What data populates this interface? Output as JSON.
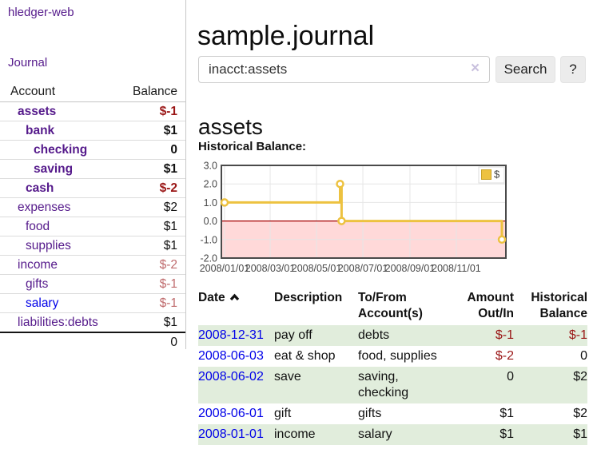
{
  "app": {
    "title": "hledger-web"
  },
  "colors": {
    "link_purple": "#551a8b",
    "link_blue": "#0000e8",
    "negative_red": "#9a1616",
    "negative_muted": "#bf6b6d",
    "row_shade_green": "#e1eddc",
    "button_gray": "#ececec"
  },
  "sidebar": {
    "nav_journal": "Journal",
    "accounts": {
      "col_account": "Account",
      "col_balance": "Balance",
      "rows": [
        {
          "name": "assets",
          "indent": 1,
          "bold": true,
          "link": "visited",
          "balance": "$-1",
          "balance_style": "negative"
        },
        {
          "name": "bank",
          "indent": 2,
          "bold": true,
          "link": "visited",
          "balance": "$1",
          "balance_style": "normal"
        },
        {
          "name": "checking",
          "indent": 3,
          "bold": true,
          "link": "visited",
          "balance": "0",
          "balance_style": "normal"
        },
        {
          "name": "saving",
          "indent": 3,
          "bold": true,
          "link": "visited",
          "balance": "$1",
          "balance_style": "normal"
        },
        {
          "name": "cash",
          "indent": 2,
          "bold": true,
          "link": "visited",
          "balance": "$-2",
          "balance_style": "negative"
        },
        {
          "name": "expenses",
          "indent": 1,
          "bold": false,
          "link": "visited",
          "balance": "$2",
          "balance_style": "normal"
        },
        {
          "name": "food",
          "indent": 2,
          "bold": false,
          "link": "visited",
          "balance": "$1",
          "balance_style": "normal"
        },
        {
          "name": "supplies",
          "indent": 2,
          "bold": false,
          "link": "visited",
          "balance": "$1",
          "balance_style": "normal"
        },
        {
          "name": "income",
          "indent": 1,
          "bold": false,
          "link": "visited",
          "balance": "$-2",
          "balance_style": "negative_muted"
        },
        {
          "name": "gifts",
          "indent": 2,
          "bold": false,
          "link": "visited",
          "balance": "$-1",
          "balance_style": "negative_muted"
        },
        {
          "name": "salary",
          "indent": 2,
          "bold": false,
          "link": "unvisited",
          "balance": "$-1",
          "balance_style": "negative_muted"
        },
        {
          "name": "liabilities:debts",
          "indent": 1,
          "bold": false,
          "link": "visited",
          "balance": "$1",
          "balance_style": "normal"
        }
      ],
      "total": "0"
    }
  },
  "main": {
    "title": "sample.journal",
    "search": {
      "value": "inacct:assets",
      "clear": "×",
      "button": "Search",
      "help": "?"
    },
    "heading": "assets",
    "chart_title": "Historical Balance:"
  },
  "chart_data": {
    "type": "line",
    "title": "Historical Balance:",
    "step": true,
    "legend": {
      "label": "$",
      "position": "top-right"
    },
    "ylim": [
      -2,
      3
    ],
    "yticks": [
      {
        "value": 3,
        "label": "3.0"
      },
      {
        "value": 2,
        "label": "2.0"
      },
      {
        "value": 1,
        "label": "1.0"
      },
      {
        "value": 0,
        "label": "0.0"
      },
      {
        "value": -1,
        "label": "-1.0"
      },
      {
        "value": -2,
        "label": "-2.0"
      }
    ],
    "xticks": [
      {
        "day": 0,
        "label": "2008/01/01"
      },
      {
        "day": 60,
        "label": "2008/03/01"
      },
      {
        "day": 121,
        "label": "2008/05/01"
      },
      {
        "day": 182,
        "label": "2008/07/01"
      },
      {
        "day": 244,
        "label": "2008/09/01"
      },
      {
        "day": 305,
        "label": "2008/11/01"
      }
    ],
    "x_total_days": 365,
    "series": [
      {
        "name": "$",
        "points": [
          {
            "date": "2008-01-01",
            "day": 0,
            "value": 1
          },
          {
            "date": "2008-06-01",
            "day": 152,
            "value": 2
          },
          {
            "date": "2008-06-03",
            "day": 154,
            "value": 0
          },
          {
            "date": "2008-12-31",
            "day": 365,
            "value": -1
          }
        ]
      }
    ],
    "colors": {
      "line": "#EDC240",
      "point_fill": "#ffffff",
      "negative_region": "#ffd9d9",
      "zero_line": "#a40000",
      "grid": "#e6e6e6",
      "border": "#4a4a4a",
      "tick_text": "#474747"
    }
  },
  "register": {
    "columns": {
      "date": "Date",
      "description": "Description",
      "tofrom": "To/From Account(s)",
      "amount": "Amount Out/In",
      "balance": "Historical Balance"
    },
    "rows": [
      {
        "date": "2008-12-31",
        "description": "pay off",
        "accounts": "debts",
        "amount": "$-1",
        "amount_negative": true,
        "balance": "$-1",
        "balance_negative": true,
        "shaded": true
      },
      {
        "date": "2008-06-03",
        "description": "eat & shop",
        "accounts": "food, supplies",
        "amount": "$-2",
        "amount_negative": true,
        "balance": "0",
        "balance_negative": false,
        "shaded": false
      },
      {
        "date": "2008-06-02",
        "description": "save",
        "accounts": "saving, checking",
        "amount": "0",
        "amount_negative": false,
        "balance": "$2",
        "balance_negative": false,
        "shaded": true
      },
      {
        "date": "2008-06-01",
        "description": "gift",
        "accounts": "gifts",
        "amount": "$1",
        "amount_negative": false,
        "balance": "$2",
        "balance_negative": false,
        "shaded": false
      },
      {
        "date": "2008-01-01",
        "description": "income",
        "accounts": "salary",
        "amount": "$1",
        "amount_negative": false,
        "balance": "$1",
        "balance_negative": false,
        "shaded": true
      }
    ]
  }
}
